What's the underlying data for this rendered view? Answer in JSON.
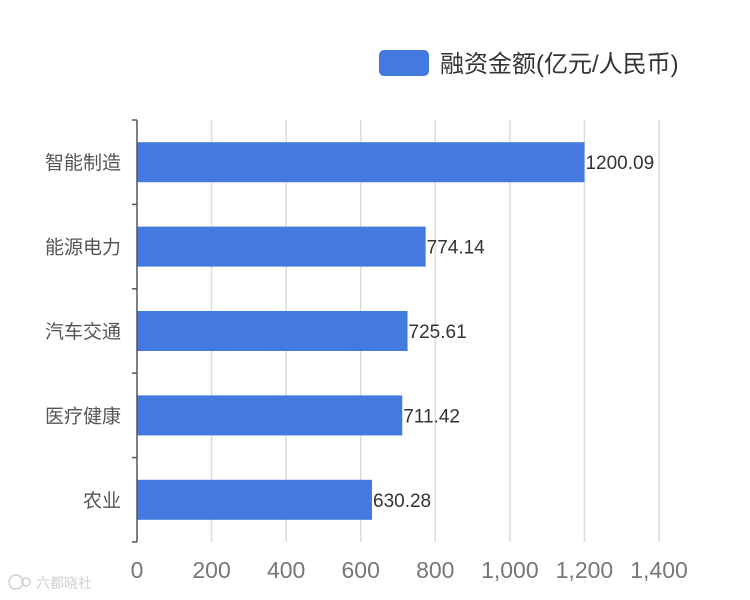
{
  "colors": {
    "bar": "#4479e0",
    "axis": "#555555",
    "grid": "#dcdcdc"
  },
  "chart_data": {
    "type": "bar",
    "orientation": "horizontal",
    "categories": [
      "智能制造",
      "能源电力",
      "汽车交通",
      "医疗健康",
      "农业"
    ],
    "series": [
      {
        "name": "融资金额(亿元/人民币)",
        "values": [
          1200.09,
          774.14,
          725.61,
          711.42,
          630.28
        ]
      }
    ],
    "value_labels": [
      "1200.09",
      "774.14",
      "725.61",
      "711.42",
      "630.28"
    ],
    "x_ticks": [
      0,
      200,
      400,
      600,
      800,
      1000,
      1200,
      1400
    ],
    "x_tick_labels": [
      "0",
      "200",
      "400",
      "600",
      "800",
      "1,000",
      "1,200",
      "1,400"
    ],
    "xlim": [
      0,
      1400
    ],
    "grid": true,
    "legend_position": "top-right"
  },
  "watermark": {
    "text": "六都晓社"
  }
}
